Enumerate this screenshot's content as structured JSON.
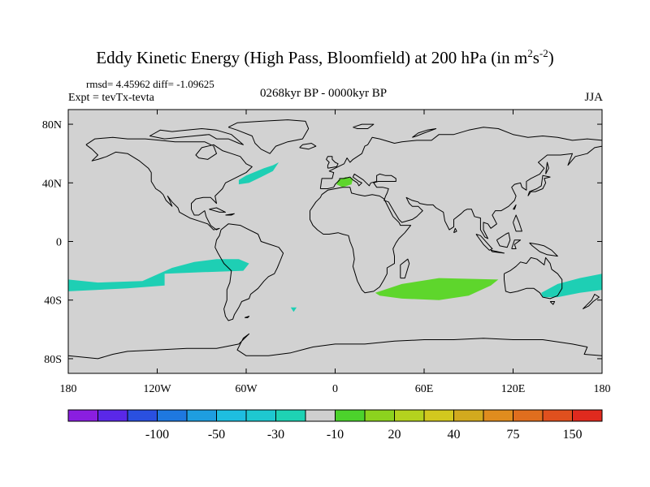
{
  "title": {
    "main": "Eddy Kinetic Energy (High Pass, Bloomfield) at 200 hPa (in m",
    "sup1": "2",
    "mid": "s",
    "sup2": "-2",
    "close": ")"
  },
  "stats_line": "rmsd= 4.45962 diff= -1.09625",
  "experiment": "Expt = tevTx-tevta",
  "period": "0268kyr BP - 0000kyr BP",
  "season": "JJA",
  "map": {
    "projection": "cylindrical-equidistant",
    "lon_range": [
      -180,
      180
    ],
    "lat_range": [
      -90,
      90
    ],
    "background_color": "#d2d2d2",
    "coastline_color": "#000000",
    "y_ticks": [
      {
        "lat": 80,
        "label": "80N"
      },
      {
        "lat": 40,
        "label": "40N"
      },
      {
        "lat": 0,
        "label": "0"
      },
      {
        "lat": -40,
        "label": "40S"
      },
      {
        "lat": -80,
        "label": "80S"
      }
    ],
    "x_ticks": [
      {
        "lon": -180,
        "label": "180"
      },
      {
        "lon": -120,
        "label": "120W"
      },
      {
        "lon": -60,
        "label": "60W"
      },
      {
        "lon": 0,
        "label": "0"
      },
      {
        "lon": 60,
        "label": "60E"
      },
      {
        "lon": 120,
        "label": "120E"
      },
      {
        "lon": 180,
        "label": "180"
      }
    ],
    "anomaly_regions": [
      {
        "name": "north-atlantic-negative",
        "level": "-10",
        "color": "#1ecfb4",
        "outline": [
          [
            -65,
            42
          ],
          [
            -60,
            45
          ],
          [
            -48,
            50
          ],
          [
            -42,
            52
          ],
          [
            -38,
            54
          ],
          [
            -42,
            48
          ],
          [
            -50,
            44
          ],
          [
            -58,
            40
          ],
          [
            -65,
            39
          ]
        ]
      },
      {
        "name": "mediterranean-positive",
        "level": "20",
        "color": "#5ed62c",
        "outline": [
          [
            2,
            42
          ],
          [
            7,
            44
          ],
          [
            12,
            43
          ],
          [
            11,
            39
          ],
          [
            5,
            37
          ],
          [
            1,
            39
          ]
        ]
      },
      {
        "name": "south-pacific-negative",
        "level": "-10",
        "color": "#1ecfb4",
        "outline": [
          [
            -180,
            -26
          ],
          [
            -160,
            -28
          ],
          [
            -130,
            -27
          ],
          [
            -110,
            -18
          ],
          [
            -95,
            -14
          ],
          [
            -80,
            -12
          ],
          [
            -65,
            -12
          ],
          [
            -58,
            -15
          ],
          [
            -62,
            -20
          ],
          [
            -90,
            -21
          ],
          [
            -115,
            -22
          ],
          [
            -115,
            -30
          ],
          [
            -140,
            -32
          ],
          [
            -160,
            -33
          ],
          [
            -180,
            -34
          ]
        ]
      },
      {
        "name": "south-indian-positive",
        "level": "20",
        "color": "#5ed62c",
        "outline": [
          [
            27,
            -35
          ],
          [
            45,
            -29
          ],
          [
            70,
            -25
          ],
          [
            110,
            -26
          ],
          [
            105,
            -30
          ],
          [
            90,
            -37
          ],
          [
            70,
            -40
          ],
          [
            45,
            -39
          ],
          [
            30,
            -37
          ]
        ]
      },
      {
        "name": "tasman-negative",
        "level": "-10",
        "color": "#1ecfb4",
        "outline": [
          [
            139,
            -35
          ],
          [
            150,
            -29
          ],
          [
            165,
            -25
          ],
          [
            180,
            -22
          ],
          [
            180,
            -33
          ],
          [
            165,
            -35
          ],
          [
            150,
            -38
          ],
          [
            140,
            -38
          ]
        ]
      },
      {
        "name": "south-atlantic-speck",
        "level": "-10",
        "color": "#1ecfb4",
        "outline": [
          [
            -30,
            -45
          ],
          [
            -26,
            -45
          ],
          [
            -28,
            -48
          ]
        ]
      }
    ]
  },
  "colorbar": {
    "colors": [
      "#8a1ee0",
      "#5a28e8",
      "#2a50e0",
      "#1e78e0",
      "#1e9ee0",
      "#1ebee0",
      "#1ec8d0",
      "#1ed2b4",
      "#cfcfcf",
      "#4cd22c",
      "#8cd21e",
      "#b4d21e",
      "#d2c81e",
      "#d2aa1e",
      "#e08c1e",
      "#e06e1e",
      "#e0501e",
      "#e02a1e"
    ],
    "labels": [
      {
        "boundary": 3,
        "text": "-100"
      },
      {
        "boundary": 5,
        "text": "-50"
      },
      {
        "boundary": 7,
        "text": "-30"
      },
      {
        "boundary": 9,
        "text": "-10"
      },
      {
        "boundary": 11,
        "text": "20"
      },
      {
        "boundary": 13,
        "text": "40"
      },
      {
        "boundary": 15,
        "text": "75"
      },
      {
        "boundary": 17,
        "text": "150"
      }
    ]
  }
}
